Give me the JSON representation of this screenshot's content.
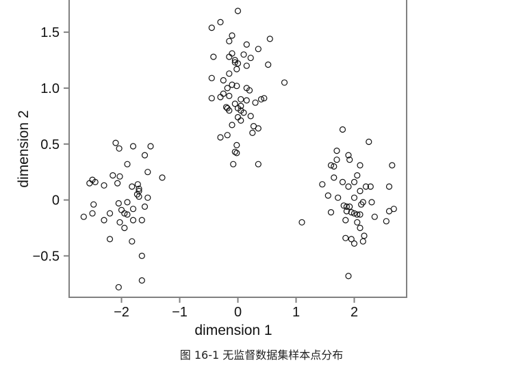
{
  "caption": "图 16-1   无监督数据集样本点分布",
  "chart_data": {
    "type": "scatter",
    "xlabel": "dimension 1",
    "ylabel": "dimension 2",
    "xlim": [
      -2.9,
      2.9
    ],
    "ylim": [
      -0.87,
      1.8
    ],
    "xticks": [
      -2,
      -1,
      0,
      1,
      2
    ],
    "xtick_labels": [
      "−2",
      "−1",
      "0",
      "1",
      "2"
    ],
    "yticks": [
      -0.5,
      0,
      0.5,
      1.0,
      1.5
    ],
    "ytick_labels": [
      "−0.5",
      "0",
      "0.5",
      "1.0",
      "1.5"
    ],
    "grid": false,
    "marker": "open-circle",
    "points": [
      [
        -2.1,
        0.51
      ],
      [
        -2.04,
        0.46
      ],
      [
        -1.8,
        0.48
      ],
      [
        -1.5,
        0.48
      ],
      [
        -1.6,
        0.4
      ],
      [
        -1.9,
        0.32
      ],
      [
        -2.15,
        0.22
      ],
      [
        -2.03,
        0.21
      ],
      [
        -2.5,
        0.18
      ],
      [
        -2.55,
        0.15
      ],
      [
        -2.45,
        0.16
      ],
      [
        -2.3,
        0.13
      ],
      [
        -2.07,
        0.15
      ],
      [
        -1.82,
        0.12
      ],
      [
        -1.72,
        0.14
      ],
      [
        -1.7,
        0.1
      ],
      [
        -1.7,
        0.08
      ],
      [
        -1.55,
        0.25
      ],
      [
        -1.3,
        0.2
      ],
      [
        -1.73,
        0.05
      ],
      [
        -1.7,
        0.03
      ],
      [
        -1.55,
        0.02
      ],
      [
        -1.9,
        -0.02
      ],
      [
        -2.05,
        -0.03
      ],
      [
        -2.48,
        -0.04
      ],
      [
        -1.6,
        -0.06
      ],
      [
        -1.8,
        -0.08
      ],
      [
        -2.0,
        -0.09
      ],
      [
        -1.95,
        -0.12
      ],
      [
        -1.9,
        -0.13
      ],
      [
        -2.2,
        -0.12
      ],
      [
        -2.5,
        -0.12
      ],
      [
        -2.65,
        -0.15
      ],
      [
        -2.3,
        -0.18
      ],
      [
        -1.65,
        -0.18
      ],
      [
        -1.8,
        -0.18
      ],
      [
        -2.03,
        -0.2
      ],
      [
        -1.95,
        -0.25
      ],
      [
        -2.2,
        -0.35
      ],
      [
        -1.82,
        -0.37
      ],
      [
        -1.65,
        -0.5
      ],
      [
        -1.65,
        -0.72
      ],
      [
        -2.05,
        -0.78
      ],
      [
        0.0,
        1.69
      ],
      [
        -0.3,
        1.59
      ],
      [
        -0.45,
        1.54
      ],
      [
        0.55,
        1.44
      ],
      [
        -0.1,
        1.47
      ],
      [
        -0.15,
        1.42
      ],
      [
        0.15,
        1.39
      ],
      [
        0.35,
        1.35
      ],
      [
        0.1,
        1.3
      ],
      [
        -0.1,
        1.31
      ],
      [
        -0.15,
        1.28
      ],
      [
        -0.42,
        1.28
      ],
      [
        0.22,
        1.27
      ],
      [
        -0.05,
        1.25
      ],
      [
        -0.05,
        1.23
      ],
      [
        0.0,
        1.22
      ],
      [
        0.15,
        1.2
      ],
      [
        0.52,
        1.21
      ],
      [
        -0.02,
        1.17
      ],
      [
        -0.15,
        1.13
      ],
      [
        -0.45,
        1.09
      ],
      [
        -0.25,
        1.07
      ],
      [
        -0.02,
        1.02
      ],
      [
        -0.1,
        1.03
      ],
      [
        -0.18,
        1.0
      ],
      [
        0.2,
        0.98
      ],
      [
        0.15,
        1.0
      ],
      [
        0.8,
        1.05
      ],
      [
        -0.25,
        0.95
      ],
      [
        -0.15,
        0.93
      ],
      [
        -0.3,
        0.92
      ],
      [
        -0.45,
        0.91
      ],
      [
        0.05,
        0.9
      ],
      [
        0.15,
        0.89
      ],
      [
        0.4,
        0.9
      ],
      [
        0.45,
        0.91
      ],
      [
        0.3,
        0.87
      ],
      [
        -0.05,
        0.86
      ],
      [
        0.05,
        0.84
      ],
      [
        -0.2,
        0.83
      ],
      [
        -0.18,
        0.82
      ],
      [
        -0.15,
        0.8
      ],
      [
        0.0,
        0.82
      ],
      [
        0.05,
        0.8
      ],
      [
        0.1,
        0.78
      ],
      [
        0.22,
        0.75
      ],
      [
        0.0,
        0.74
      ],
      [
        0.05,
        0.71
      ],
      [
        -0.1,
        0.67
      ],
      [
        0.27,
        0.66
      ],
      [
        0.35,
        0.64
      ],
      [
        -0.18,
        0.58
      ],
      [
        -0.3,
        0.56
      ],
      [
        0.25,
        0.6
      ],
      [
        -0.02,
        0.49
      ],
      [
        -0.05,
        0.43
      ],
      [
        -0.02,
        0.42
      ],
      [
        -0.08,
        0.32
      ],
      [
        0.35,
        0.32
      ],
      [
        1.8,
        0.63
      ],
      [
        2.25,
        0.52
      ],
      [
        1.7,
        0.44
      ],
      [
        1.9,
        0.4
      ],
      [
        1.7,
        0.36
      ],
      [
        1.6,
        0.31
      ],
      [
        1.92,
        0.36
      ],
      [
        2.1,
        0.31
      ],
      [
        2.65,
        0.31
      ],
      [
        1.65,
        0.3
      ],
      [
        2.05,
        0.22
      ],
      [
        1.65,
        0.2
      ],
      [
        1.8,
        0.16
      ],
      [
        2.0,
        0.16
      ],
      [
        1.45,
        0.14
      ],
      [
        1.9,
        0.12
      ],
      [
        2.2,
        0.12
      ],
      [
        2.28,
        0.12
      ],
      [
        2.6,
        0.12
      ],
      [
        2.1,
        0.08
      ],
      [
        1.55,
        0.04
      ],
      [
        1.72,
        0.02
      ],
      [
        2.0,
        0.02
      ],
      [
        2.15,
        -0.02
      ],
      [
        2.3,
        -0.02
      ],
      [
        2.12,
        -0.04
      ],
      [
        1.82,
        -0.05
      ],
      [
        1.87,
        -0.06
      ],
      [
        1.92,
        -0.06
      ],
      [
        2.68,
        -0.08
      ],
      [
        2.6,
        -0.1
      ],
      [
        1.6,
        -0.11
      ],
      [
        1.87,
        -0.1
      ],
      [
        1.95,
        -0.11
      ],
      [
        2.0,
        -0.12
      ],
      [
        2.05,
        -0.13
      ],
      [
        2.1,
        -0.13
      ],
      [
        2.35,
        -0.15
      ],
      [
        1.85,
        -0.18
      ],
      [
        2.05,
        -0.2
      ],
      [
        2.55,
        -0.19
      ],
      [
        1.1,
        -0.2
      ],
      [
        2.1,
        -0.25
      ],
      [
        2.17,
        -0.32
      ],
      [
        1.85,
        -0.34
      ],
      [
        1.95,
        -0.35
      ],
      [
        2.15,
        -0.37
      ],
      [
        2.0,
        -0.39
      ],
      [
        1.9,
        -0.68
      ]
    ]
  }
}
